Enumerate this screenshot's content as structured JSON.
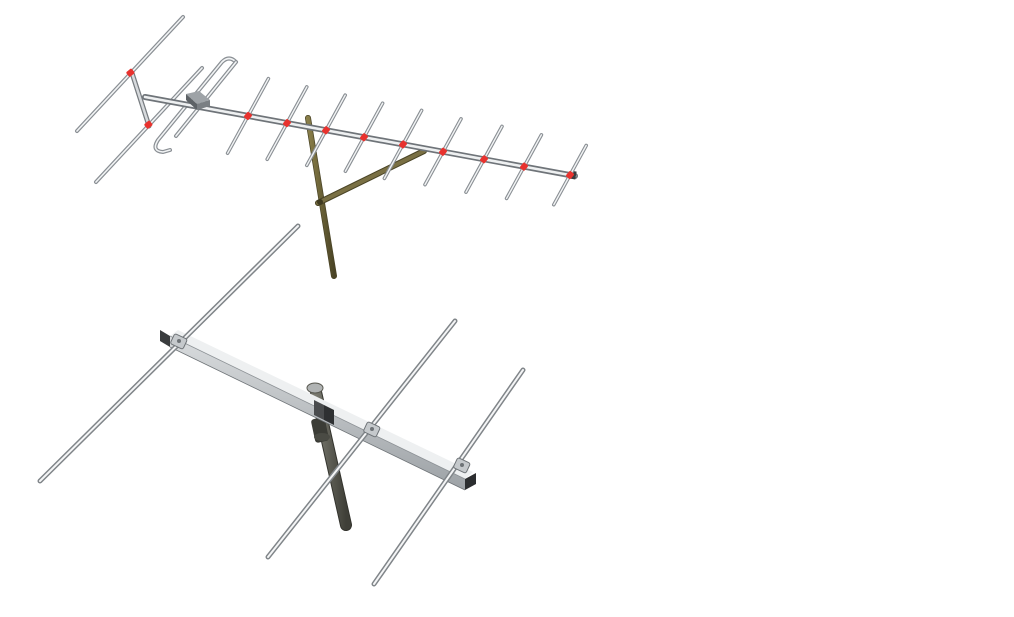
{
  "scene": {
    "background": "#ffffff",
    "subjects": [
      {
        "name": "yagi-antenna",
        "element_count": 13
      },
      {
        "name": "three-element-antenna",
        "element_count": 3
      }
    ]
  },
  "colors": {
    "rod_light": "#f2f4f5",
    "rod_mid": "#c4c9cc",
    "rod_dark": "#8e9398",
    "rod_edge": "#6f7479",
    "insulator": "#e8322e",
    "mast_wood": "#6b6237",
    "mast_wood_dark": "#4a4426",
    "mast_metal": "#5a5a52",
    "clamp": "#3a3c3e",
    "shadow": "#b9bec2"
  }
}
